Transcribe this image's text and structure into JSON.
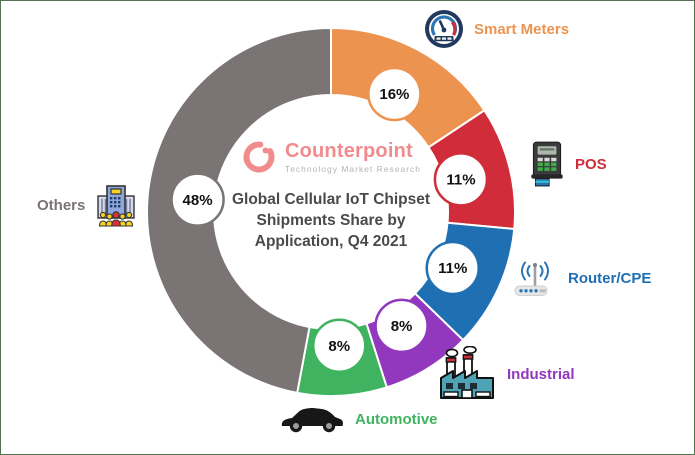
{
  "frame": {
    "border_color": "#537253"
  },
  "logo": {
    "name": "Counterpoint",
    "subtitle": "Technology Market Research",
    "brand_color": "#F18C8E",
    "subtitle_color": "#B5B5B5"
  },
  "title": {
    "text": "Global Cellular IoT Chipset Shipments Share by Application, Q4 2021",
    "lines": [
      "Global Cellular IoT Chipset",
      "Shipments Share by",
      "Application, Q4 2021"
    ],
    "color": "#4A4A4A"
  },
  "chart_data": {
    "type": "pie",
    "subtype": "donut",
    "title": "Global Cellular IoT Chipset Shipments Share by Application, Q4 2021",
    "start_angle_deg": 0,
    "direction": "clockwise",
    "legend_position": "around",
    "segments": [
      {
        "label": "Smart Meters",
        "value": 16,
        "display": "16%",
        "color": "#ED9350",
        "icon": "gauge-icon"
      },
      {
        "label": "POS",
        "value": 11,
        "display": "11%",
        "color": "#D02C39",
        "icon": "pos-terminal-icon"
      },
      {
        "label": "Router/CPE",
        "value": 11,
        "display": "11%",
        "color": "#1F6FB3",
        "icon": "router-icon"
      },
      {
        "label": "Industrial",
        "value": 8,
        "display": "8%",
        "color": "#9138BE",
        "icon": "factory-icon"
      },
      {
        "label": "Automotive",
        "value": 8,
        "display": "8%",
        "color": "#3FB35F",
        "icon": "car-icon"
      },
      {
        "label": "Others",
        "value": 48,
        "display": "48%",
        "color": "#7A7474",
        "icon": "building-people-icon"
      }
    ]
  }
}
